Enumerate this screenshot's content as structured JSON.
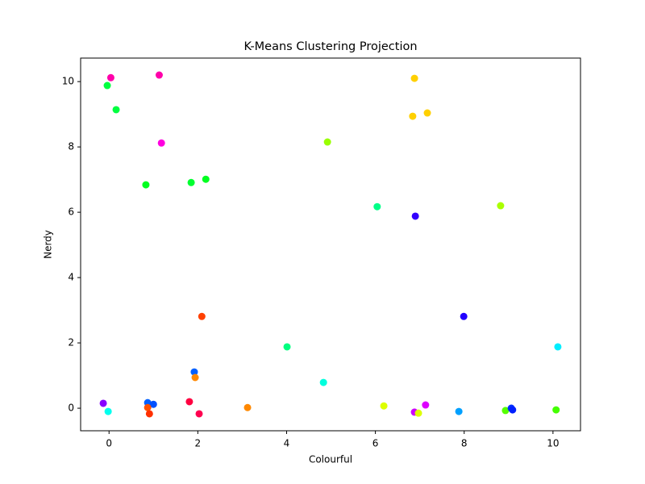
{
  "chart_data": {
    "type": "scatter",
    "title": "K-Means Clustering Projection",
    "x_label": "Colourful",
    "y_label": "Nerdy",
    "x": [
      -0.04,
      0.04,
      0.16,
      1.13,
      1.18,
      0.83,
      1.85,
      2.18,
      2.09,
      1.92,
      1.94,
      1.81,
      2.03,
      3.12,
      -0.13,
      -0.02,
      0.87,
      1.0,
      0.87,
      0.91,
      4.01,
      4.83,
      4.92,
      6.04,
      6.88,
      6.84,
      7.17,
      6.9,
      8.82,
      7.99,
      10.11,
      6.19,
      6.88,
      6.97,
      7.13,
      7.88,
      8.93,
      9.06,
      9.09,
      10.07
    ],
    "values": [
      9.88,
      10.12,
      9.14,
      10.2,
      8.12,
      6.84,
      6.91,
      7.01,
      2.81,
      1.11,
      0.94,
      0.2,
      -0.17,
      0.02,
      0.15,
      -0.1,
      0.17,
      0.12,
      0.02,
      -0.17,
      1.88,
      0.79,
      8.15,
      6.17,
      10.1,
      8.94,
      9.04,
      5.88,
      6.2,
      2.81,
      1.88,
      0.07,
      -0.12,
      -0.15,
      0.1,
      -0.1,
      -0.07,
      0.0,
      -0.05,
      -0.05
    ],
    "colors": [
      "#00ff40",
      "#ff00aa",
      "#00ff40",
      "#ff00aa",
      "#ff00e0",
      "#00ff20",
      "#00ff30",
      "#00ff20",
      "#ff4000",
      "#0060ff",
      "#ff8800",
      "#ff0040",
      "#ff0050",
      "#ff8800",
      "#8800ff",
      "#00ffee",
      "#0060ff",
      "#0050ff",
      "#ff5000",
      "#ff3000",
      "#00ff80",
      "#00ffdd",
      "#99ff00",
      "#00ff88",
      "#ffd000",
      "#ffd000",
      "#ffd000",
      "#3300ff",
      "#aaff00",
      "#2200ff",
      "#00eeff",
      "#ddff00",
      "#cc00ff",
      "#ddff00",
      "#dd00ff",
      "#00a0ff",
      "#55ff00",
      "#0030ff",
      "#0020ff",
      "#44ff00"
    ],
    "xlim": [
      -0.64,
      10.62
    ],
    "ylim": [
      -0.69,
      10.72
    ],
    "xticks": [
      0,
      2,
      4,
      6,
      8,
      10
    ],
    "yticks": [
      0,
      2,
      4,
      6,
      8,
      10
    ]
  }
}
